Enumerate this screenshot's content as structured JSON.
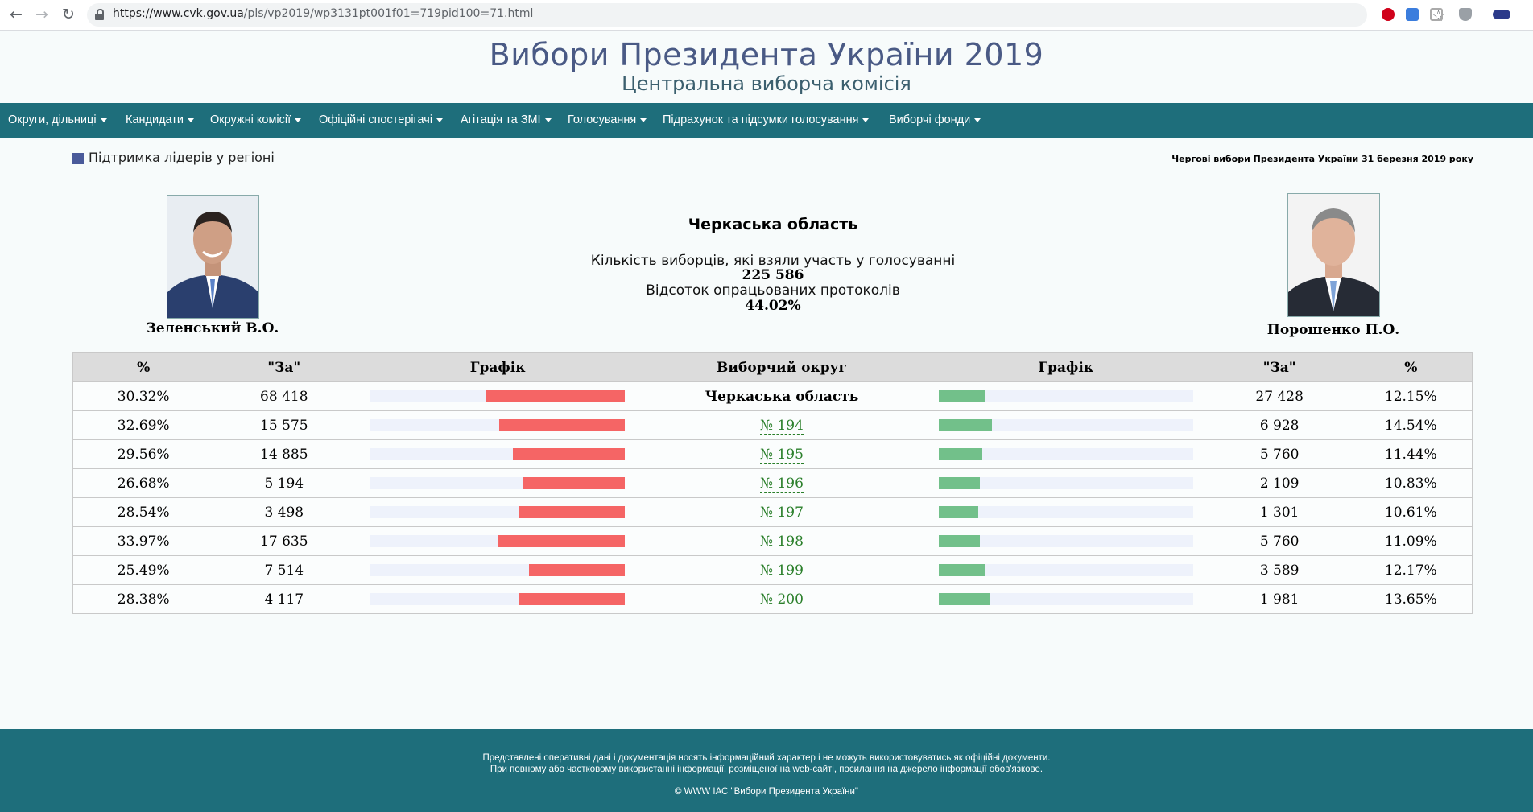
{
  "browser": {
    "url_host": "https://www.cvk.gov.ua",
    "url_path": "/pls/vp2019/wp3131pt001f01=719pid100=71.html"
  },
  "header": {
    "title": "Вибори Президента України 2019",
    "subtitle": "Центральна виборча комісія"
  },
  "menu": [
    {
      "label": "Округи, дільниці"
    },
    {
      "label": "Кандидати"
    },
    {
      "label": "Окружні комісії"
    },
    {
      "label": "Офіційні спостерігачі"
    },
    {
      "label": "Агітація та ЗМІ"
    },
    {
      "label": "Голосування"
    },
    {
      "label": "Підрахунок та підсумки голосування"
    },
    {
      "label": "Виборчі фонди"
    }
  ],
  "section": {
    "legend": "Підтримка лідерів у регіоні",
    "election": "Чергові вибори Президента України 31 березня 2019 року",
    "legend_color": "#4a5a9a"
  },
  "summary": {
    "region": "Черкаська область",
    "voters_label": "Кількість виборців, які взяли участь у голосуванні",
    "voters_value": "225 586",
    "protocols_label": "Відсоток опрацьованих протоколів",
    "protocols_value": "44.02%"
  },
  "candidates": {
    "left": {
      "name": "Зеленський В.О.",
      "bar_color": "#f56565"
    },
    "right": {
      "name": "Порошенко П.О.",
      "bar_color": "#72c08a"
    }
  },
  "table": {
    "headers": [
      "%",
      "\"За\"",
      "Графік",
      "Виборчий округ",
      "Графік",
      "\"За\"",
      "%"
    ],
    "rows": [
      {
        "l_pct": "30.32%",
        "l_votes": "68 418",
        "l_share": 0.5489,
        "district": "Черкаська область",
        "is_region": true,
        "r_share": 0.1801,
        "r_votes": "27 428",
        "r_pct": "12.15%"
      },
      {
        "l_pct": "32.69%",
        "l_votes": "15 575",
        "l_share": 0.4944,
        "district": "№ 194",
        "is_region": false,
        "r_share": 0.2087,
        "r_votes": "6 928",
        "r_pct": "14.54%"
      },
      {
        "l_pct": "29.56%",
        "l_votes": "14 885",
        "l_share": 0.4394,
        "district": "№ 195",
        "is_region": false,
        "r_share": 0.17,
        "r_votes": "5 760",
        "r_pct": "11.44%"
      },
      {
        "l_pct": "26.68%",
        "l_votes": "5 194",
        "l_share": 0.3986,
        "district": "№ 196",
        "is_region": false,
        "r_share": 0.1618,
        "r_votes": "2 109",
        "r_pct": "10.83%"
      },
      {
        "l_pct": "28.54%",
        "l_votes": "3 498",
        "l_share": 0.4182,
        "district": "№ 197",
        "is_region": false,
        "r_share": 0.1555,
        "r_votes": "1 301",
        "r_pct": "10.61%"
      },
      {
        "l_pct": "33.97%",
        "l_votes": "17 635",
        "l_share": 0.5012,
        "district": "№ 198",
        "is_region": false,
        "r_share": 0.1636,
        "r_votes": "5 760",
        "r_pct": "11.09%"
      },
      {
        "l_pct": "25.49%",
        "l_votes": "7 514",
        "l_share": 0.3782,
        "district": "№ 199",
        "is_region": false,
        "r_share": 0.1806,
        "r_votes": "3 589",
        "r_pct": "12.17%"
      },
      {
        "l_pct": "28.38%",
        "l_votes": "4 117",
        "l_share": 0.4182,
        "district": "№ 200",
        "is_region": false,
        "r_share": 0.201,
        "r_votes": "1 981",
        "r_pct": "13.65%"
      }
    ]
  },
  "footer": {
    "line1": "Представлені оперативні дані і документація носять інформаційний характер і не можуть використовуватись як офіційні документи.",
    "line2": "При повному або частковому використанні інформації, розміщеної на web-сайті, посилання на джерело інформації обов'язкове.",
    "line3": "© WWW ІАС \"Вибори Президента України\""
  }
}
